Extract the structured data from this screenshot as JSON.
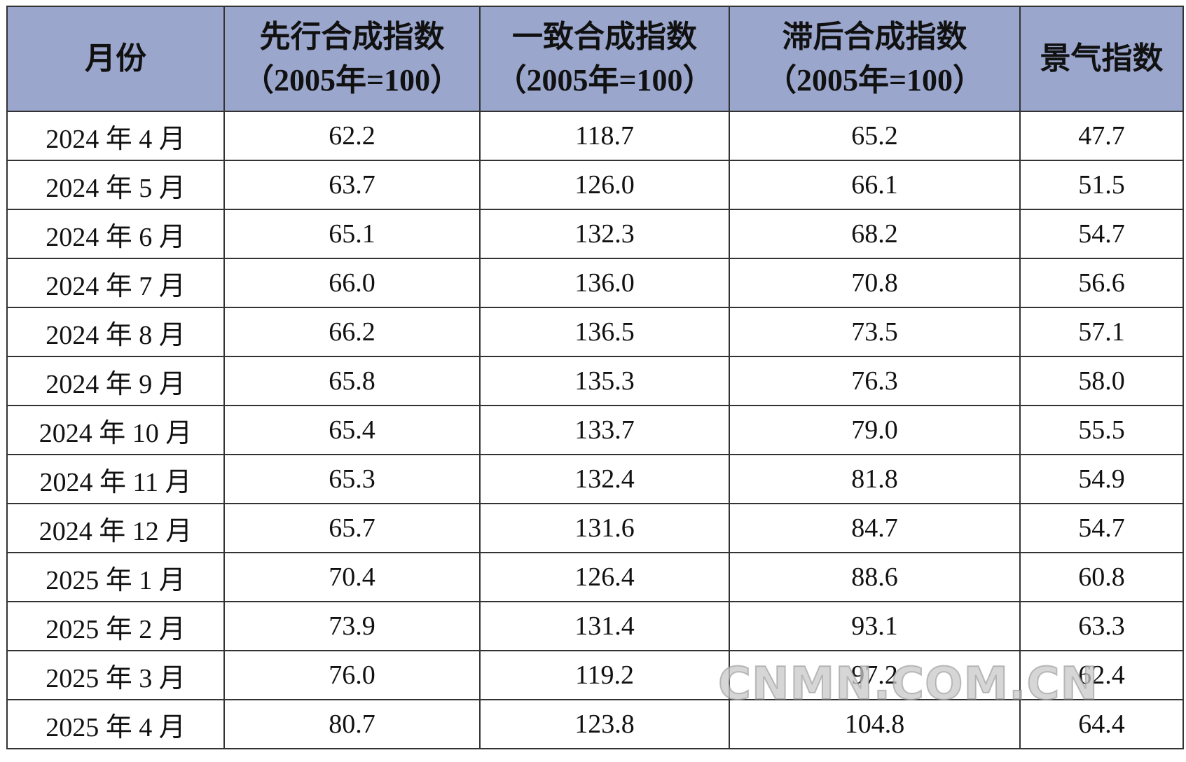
{
  "table": {
    "header": [
      [
        "月份"
      ],
      [
        "先行合成指数",
        "（2005年=100）"
      ],
      [
        "一致合成指数",
        "（2005年=100）"
      ],
      [
        "滞后合成指数",
        "（2005年=100）"
      ],
      [
        "景气指数"
      ]
    ],
    "rows": [
      [
        "2024 年 4 月",
        "62.2",
        "118.7",
        "65.2",
        "47.7"
      ],
      [
        "2024 年 5 月",
        "63.7",
        "126.0",
        "66.1",
        "51.5"
      ],
      [
        "2024 年 6 月",
        "65.1",
        "132.3",
        "68.2",
        "54.7"
      ],
      [
        "2024 年 7 月",
        "66.0",
        "136.0",
        "70.8",
        "56.6"
      ],
      [
        "2024 年 8 月",
        "66.2",
        "136.5",
        "73.5",
        "57.1"
      ],
      [
        "2024 年 9 月",
        "65.8",
        "135.3",
        "76.3",
        "58.0"
      ],
      [
        "2024 年 10 月",
        "65.4",
        "133.7",
        "79.0",
        "55.5"
      ],
      [
        "2024 年 11 月",
        "65.3",
        "132.4",
        "81.8",
        "54.9"
      ],
      [
        "2024 年 12 月",
        "65.7",
        "131.6",
        "84.7",
        "54.7"
      ],
      [
        "2025 年 1 月",
        "70.4",
        "126.4",
        "88.6",
        "60.8"
      ],
      [
        "2025 年 2 月",
        "73.9",
        "131.4",
        "93.1",
        "63.3"
      ],
      [
        "2025 年 3 月",
        "76.0",
        "119.2",
        "97.2",
        "62.4"
      ],
      [
        "2025 年 4 月",
        "80.7",
        "123.8",
        "104.8",
        "64.4"
      ]
    ]
  },
  "watermark": "CNMN.COM.CN"
}
